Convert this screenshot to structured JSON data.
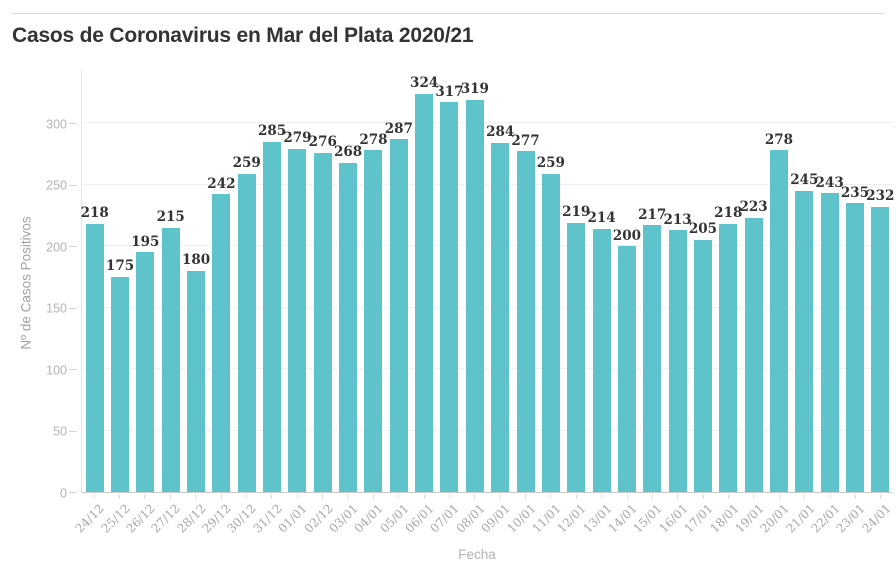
{
  "page": {
    "title": "Casos de Coronavirus en Mar del Plata 2020/21"
  },
  "chart_data": {
    "type": "bar",
    "title": "Casos de Coronavirus en Mar del Plata 2020/21",
    "xlabel": "Fecha",
    "ylabel": "Nº de Casos Positivos",
    "categories": [
      "24/12",
      "25/12",
      "26/12",
      "27/12",
      "28/12",
      "29/12",
      "30/12",
      "31/12",
      "01/01",
      "02/12",
      "03/01",
      "04/01",
      "05/01",
      "06/01",
      "07/01",
      "08/01",
      "09/01",
      "10/01",
      "11/01",
      "12/01",
      "13/01",
      "14/01",
      "15/01",
      "16/01",
      "17/01",
      "18/01",
      "19/01",
      "20/01",
      "21/01",
      "22/01",
      "23/01",
      "24/01"
    ],
    "values": [
      218,
      175,
      195,
      215,
      180,
      242,
      259,
      285,
      279,
      276,
      268,
      278,
      287,
      324,
      317,
      319,
      284,
      277,
      259,
      219,
      214,
      200,
      217,
      213,
      205,
      218,
      223,
      278,
      245,
      243,
      235,
      232
    ],
    "ylim": [
      0,
      344
    ],
    "yticks": [
      0,
      50,
      100,
      150,
      200,
      250,
      300
    ],
    "grid": true,
    "legend": "none",
    "bar_color": "#5ec3ca",
    "value_label_color": "#333333",
    "tick_label_color": "#b3b3b3",
    "axis_title_color": "#a2a2a2",
    "title_color": "#333333"
  }
}
